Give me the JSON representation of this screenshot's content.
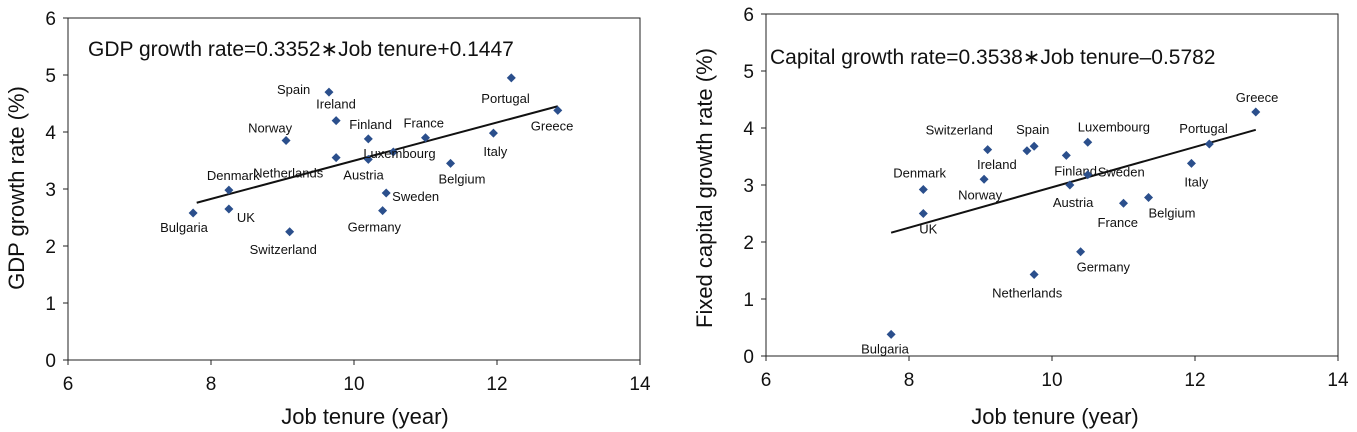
{
  "chart_data": [
    {
      "type": "scatter",
      "title": "",
      "annotation": "GDP growth rate=0.3352∗Job tenure+0.1447",
      "xlabel": "Job tenure (year)",
      "ylabel": "GDP growth rate (%)",
      "xlim": [
        6,
        14
      ],
      "ylim": [
        0,
        6
      ],
      "xticks": [
        "6",
        "8",
        "10",
        "12",
        "14"
      ],
      "yticks": [
        "0",
        "1",
        "2",
        "3",
        "4",
        "5",
        "6"
      ],
      "trendline": {
        "slope": 0.3352,
        "intercept": 0.1447,
        "x_range": [
          7.8,
          12.85
        ]
      },
      "points": [
        {
          "label": "Bulgaria",
          "x": 7.75,
          "y": 2.58
        },
        {
          "label": "UK",
          "x": 8.25,
          "y": 2.65
        },
        {
          "label": "Denmark",
          "x": 8.25,
          "y": 2.98
        },
        {
          "label": "Switzerland",
          "x": 9.1,
          "y": 2.25
        },
        {
          "label": "Norway",
          "x": 9.05,
          "y": 3.85
        },
        {
          "label": "Spain",
          "x": 9.65,
          "y": 4.7
        },
        {
          "label": "Ireland",
          "x": 9.75,
          "y": 4.2
        },
        {
          "label": "Netherlands",
          "x": 9.75,
          "y": 3.55
        },
        {
          "label": "Finland",
          "x": 10.2,
          "y": 3.88
        },
        {
          "label": "Austria",
          "x": 10.2,
          "y": 3.52
        },
        {
          "label": "Luxembourg",
          "x": 10.55,
          "y": 3.65
        },
        {
          "label": "Germany",
          "x": 10.4,
          "y": 2.62
        },
        {
          "label": "Sweden",
          "x": 10.45,
          "y": 2.93
        },
        {
          "label": "France",
          "x": 11.0,
          "y": 3.9
        },
        {
          "label": "Belgium",
          "x": 11.35,
          "y": 3.45
        },
        {
          "label": "Italy",
          "x": 11.95,
          "y": 3.98
        },
        {
          "label": "Portugal",
          "x": 12.2,
          "y": 4.95
        },
        {
          "label": "Greece",
          "x": 12.85,
          "y": 4.38
        }
      ]
    },
    {
      "type": "scatter",
      "title": "",
      "annotation": "Capital growth rate=0.3538∗Job tenure–0.5782",
      "xlabel": "Job tenure (year)",
      "ylabel": "Fixed capital growth rate (%)",
      "xlim": [
        6,
        14
      ],
      "ylim": [
        0,
        6
      ],
      "xticks": [
        "6",
        "8",
        "10",
        "12",
        "14"
      ],
      "yticks": [
        "0",
        "1",
        "2",
        "3",
        "4",
        "5",
        "6"
      ],
      "trendline": {
        "slope": 0.3538,
        "intercept": -0.5782,
        "x_range": [
          7.75,
          12.85
        ]
      },
      "points": [
        {
          "label": "Bulgaria",
          "x": 7.75,
          "y": 0.38
        },
        {
          "label": "UK",
          "x": 8.2,
          "y": 2.5
        },
        {
          "label": "Denmark",
          "x": 8.2,
          "y": 2.92
        },
        {
          "label": "Norway",
          "x": 9.05,
          "y": 3.1
        },
        {
          "label": "Switzerland",
          "x": 9.1,
          "y": 3.62
        },
        {
          "label": "Ireland",
          "x": 9.65,
          "y": 3.6
        },
        {
          "label": "Spain",
          "x": 9.75,
          "y": 3.68
        },
        {
          "label": "Netherlands",
          "x": 9.75,
          "y": 1.43
        },
        {
          "label": "Finland",
          "x": 10.2,
          "y": 3.52
        },
        {
          "label": "Austria",
          "x": 10.25,
          "y": 3.0
        },
        {
          "label": "Germany",
          "x": 10.4,
          "y": 1.83
        },
        {
          "label": "Luxembourg",
          "x": 10.5,
          "y": 3.75
        },
        {
          "label": "Sweden",
          "x": 10.5,
          "y": 3.18
        },
        {
          "label": "France",
          "x": 11.0,
          "y": 2.68
        },
        {
          "label": "Belgium",
          "x": 11.35,
          "y": 2.78
        },
        {
          "label": "Italy",
          "x": 11.95,
          "y": 3.38
        },
        {
          "label": "Portugal",
          "x": 12.2,
          "y": 3.72
        },
        {
          "label": "Greece",
          "x": 12.85,
          "y": 4.28
        }
      ]
    }
  ],
  "colors": {
    "marker": "#2b4f8c",
    "line": "#111111",
    "frame": "#222222"
  }
}
